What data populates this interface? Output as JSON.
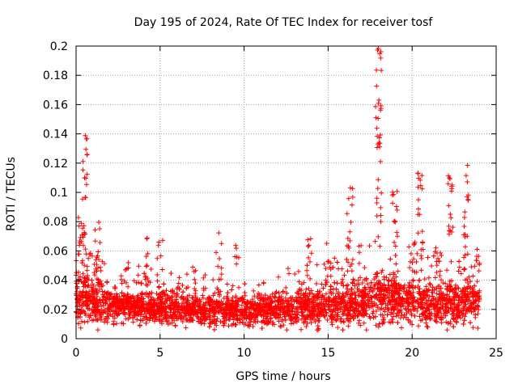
{
  "chart_data": {
    "type": "scatter",
    "title": "Day 195 of 2024, Rate Of TEC Index for receiver tosf",
    "xlabel": "GPS time / hours",
    "ylabel": "ROTI / TECUs",
    "xlim": [
      0,
      25
    ],
    "ylim": [
      0,
      0.2
    ],
    "xticks": [
      0,
      5,
      10,
      15,
      20,
      25
    ],
    "yticks": [
      0,
      0.02,
      0.04,
      0.06,
      0.08,
      0.1,
      0.12,
      0.14,
      0.16,
      0.18,
      0.2
    ],
    "grid": true,
    "marker": "+",
    "color": "#ff0000",
    "series": [
      {
        "name": "ROTI",
        "band_x_range": [
          0,
          24
        ],
        "envelope": [
          {
            "x": 0.0,
            "base": 0.022,
            "spread": 0.012,
            "max": 0.06
          },
          {
            "x": 0.3,
            "base": 0.028,
            "spread": 0.022,
            "max": 0.085
          },
          {
            "x": 0.5,
            "base": 0.028,
            "spread": 0.022,
            "max": 0.145
          },
          {
            "x": 1.0,
            "base": 0.024,
            "spread": 0.015,
            "max": 0.06
          },
          {
            "x": 1.3,
            "base": 0.024,
            "spread": 0.018,
            "max": 0.09
          },
          {
            "x": 2.0,
            "base": 0.022,
            "spread": 0.012,
            "max": 0.045
          },
          {
            "x": 3.0,
            "base": 0.022,
            "spread": 0.012,
            "max": 0.056
          },
          {
            "x": 4.3,
            "base": 0.022,
            "spread": 0.013,
            "max": 0.07
          },
          {
            "x": 5.0,
            "base": 0.022,
            "spread": 0.013,
            "max": 0.068
          },
          {
            "x": 6.0,
            "base": 0.02,
            "spread": 0.011,
            "max": 0.042
          },
          {
            "x": 7.0,
            "base": 0.02,
            "spread": 0.011,
            "max": 0.05
          },
          {
            "x": 8.5,
            "base": 0.02,
            "spread": 0.011,
            "max": 0.073
          },
          {
            "x": 9.6,
            "base": 0.02,
            "spread": 0.011,
            "max": 0.065
          },
          {
            "x": 11.0,
            "base": 0.02,
            "spread": 0.011,
            "max": 0.04
          },
          {
            "x": 12.5,
            "base": 0.02,
            "spread": 0.012,
            "max": 0.048
          },
          {
            "x": 13.9,
            "base": 0.022,
            "spread": 0.014,
            "max": 0.073
          },
          {
            "x": 15.0,
            "base": 0.022,
            "spread": 0.014,
            "max": 0.066
          },
          {
            "x": 16.3,
            "base": 0.025,
            "spread": 0.017,
            "max": 0.105
          },
          {
            "x": 17.0,
            "base": 0.025,
            "spread": 0.017,
            "max": 0.068
          },
          {
            "x": 18.0,
            "base": 0.027,
            "spread": 0.019,
            "max": 0.2
          },
          {
            "x": 19.0,
            "base": 0.027,
            "spread": 0.019,
            "max": 0.11
          },
          {
            "x": 20.0,
            "base": 0.025,
            "spread": 0.018,
            "max": 0.07
          },
          {
            "x": 20.5,
            "base": 0.025,
            "spread": 0.018,
            "max": 0.115
          },
          {
            "x": 21.5,
            "base": 0.024,
            "spread": 0.016,
            "max": 0.07
          },
          {
            "x": 22.3,
            "base": 0.024,
            "spread": 0.016,
            "max": 0.113
          },
          {
            "x": 23.2,
            "base": 0.024,
            "spread": 0.017,
            "max": 0.122
          },
          {
            "x": 24.0,
            "base": 0.024,
            "spread": 0.015,
            "max": 0.065
          }
        ]
      }
    ]
  }
}
